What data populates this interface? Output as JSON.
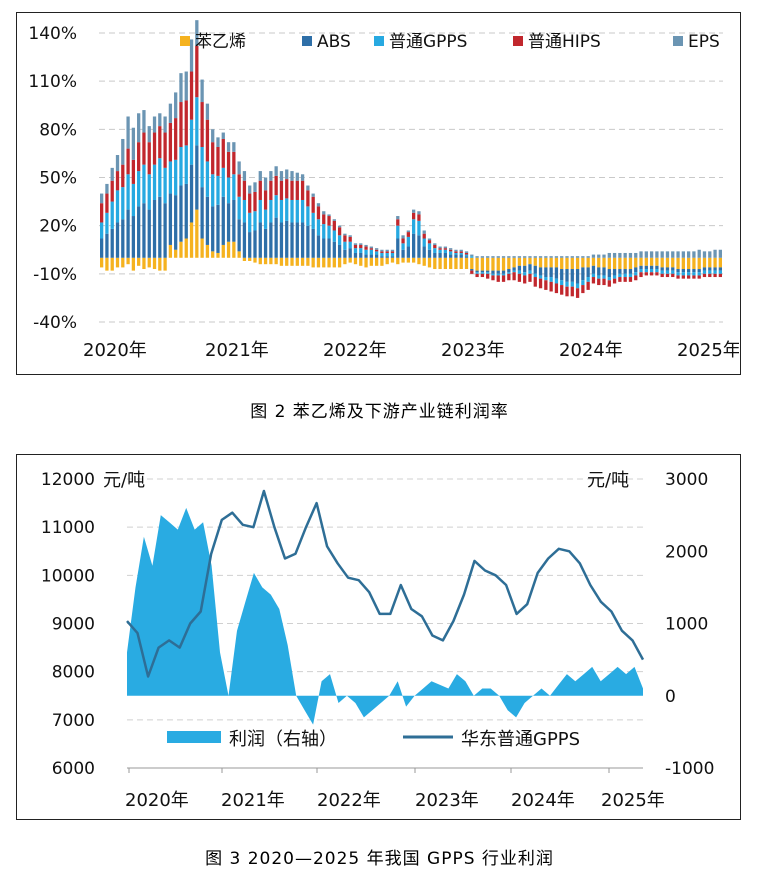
{
  "figure1": {
    "caption": "图 2  苯乙烯及下游产业链利润率",
    "chart_data": {
      "type": "bar",
      "stacked": true,
      "title": "",
      "y_ticks": [
        "140%",
        "110%",
        "80%",
        "50%",
        "20%",
        "-10%",
        "-40%"
      ],
      "ylim": [
        -40,
        140
      ],
      "x_ticks": [
        "2020年",
        "2021年",
        "2022年",
        "2023年",
        "2024年",
        "2025年"
      ],
      "legend_position": "top",
      "grid": "horizontal dashed",
      "series": [
        {
          "name": "苯乙烯",
          "color": "#F5B21F",
          "values": [
            -6,
            -8,
            -8,
            -6,
            -6,
            -4,
            -8,
            -5,
            -7,
            -6,
            -7,
            -8,
            -8,
            8,
            5,
            10,
            12,
            22,
            30,
            12,
            8,
            4,
            3,
            8,
            10,
            10,
            4,
            -2,
            -2,
            -3,
            -4,
            -4,
            -4,
            -4,
            -5,
            -5,
            -5,
            -5,
            -5,
            -5,
            -6,
            -6,
            -6,
            -6,
            -6,
            -6,
            -4,
            -3,
            -4,
            -5,
            -6,
            -5,
            -5,
            -5,
            -4,
            -3,
            -4,
            -3,
            -3,
            -3,
            -4,
            -5,
            -6,
            -7,
            -7,
            -7,
            -7,
            -7,
            -7,
            -7,
            -7,
            -8,
            -8,
            -8,
            -8,
            -8,
            -8,
            -7,
            -6,
            -5,
            -5,
            -4,
            -5,
            -6,
            -6,
            -6,
            -6,
            -7,
            -7,
            -7,
            -7,
            -6,
            -6,
            -5,
            -6,
            -6,
            -7,
            -7,
            -7,
            -7,
            -7,
            -6,
            -5,
            -5,
            -5,
            -5,
            -6,
            -6,
            -6,
            -7,
            -7,
            -7,
            -7,
            -7,
            -6,
            -6,
            -6,
            -6
          ]
        },
        {
          "name": "ABS",
          "color": "#2E6FA8",
          "values": [
            12,
            15,
            18,
            22,
            24,
            30,
            26,
            32,
            34,
            30,
            36,
            38,
            34,
            32,
            34,
            35,
            34,
            36,
            40,
            32,
            30,
            28,
            30,
            30,
            24,
            26,
            20,
            22,
            16,
            17,
            22,
            18,
            22,
            25,
            22,
            23,
            22,
            22,
            22,
            20,
            18,
            14,
            12,
            12,
            10,
            8,
            5,
            6,
            3,
            3,
            2,
            2,
            2,
            1,
            1,
            1,
            12,
            5,
            7,
            15,
            14,
            7,
            5,
            3,
            3,
            3,
            2,
            2,
            2,
            1,
            -1,
            -1,
            -1,
            -1,
            -2,
            -2,
            -2,
            -2,
            -2,
            -3,
            -4,
            -4,
            -5,
            -5,
            -6,
            -6,
            -7,
            -7,
            -8,
            -8,
            -9,
            -8,
            -6,
            -5,
            -5,
            -5,
            -5,
            -4,
            -3,
            -3,
            -3,
            -3,
            -2,
            -2,
            -2,
            -2,
            -2,
            -2,
            -2,
            -2,
            -2,
            -2,
            -2,
            -2,
            -2,
            -2,
            -2,
            -2
          ]
        },
        {
          "name": "普通GPPS",
          "color": "#27A9E1",
          "values": [
            10,
            13,
            17,
            20,
            20,
            22,
            20,
            22,
            24,
            22,
            22,
            24,
            22,
            20,
            22,
            24,
            24,
            28,
            30,
            25,
            22,
            20,
            18,
            18,
            16,
            16,
            14,
            14,
            12,
            12,
            14,
            12,
            14,
            14,
            14,
            14,
            14,
            14,
            14,
            12,
            10,
            10,
            9,
            8,
            7,
            6,
            5,
            4,
            3,
            3,
            3,
            3,
            2,
            2,
            2,
            2,
            8,
            4,
            6,
            9,
            9,
            5,
            4,
            3,
            2,
            2,
            2,
            1,
            1,
            1,
            1,
            -1,
            -1,
            -1,
            -1,
            -1,
            -1,
            -1,
            -1,
            -2,
            -2,
            -2,
            -2,
            -2,
            -2,
            -3,
            -3,
            -3,
            -3,
            -3,
            -3,
            -3,
            -3,
            -2,
            -2,
            -2,
            -2,
            -2,
            -2,
            -2,
            -2,
            -2,
            -2,
            -2,
            -2,
            -2,
            -2,
            -2,
            -2,
            -2,
            -2,
            -2,
            -2,
            -2,
            -2,
            -2,
            -2,
            -2
          ]
        },
        {
          "name": "普通HIPS",
          "color": "#C1272D",
          "values": [
            12,
            12,
            13,
            12,
            14,
            16,
            15,
            18,
            20,
            20,
            20,
            20,
            22,
            24,
            26,
            28,
            28,
            30,
            32,
            28,
            26,
            20,
            18,
            18,
            16,
            14,
            14,
            12,
            12,
            12,
            12,
            12,
            12,
            12,
            12,
            12,
            12,
            12,
            12,
            10,
            10,
            8,
            6,
            6,
            6,
            5,
            4,
            3,
            2,
            2,
            2,
            1,
            1,
            1,
            1,
            1,
            4,
            3,
            3,
            4,
            4,
            3,
            2,
            2,
            1,
            1,
            1,
            1,
            1,
            1,
            -2,
            -2,
            -2,
            -3,
            -3,
            -4,
            -4,
            -4,
            -5,
            -5,
            -5,
            -5,
            -6,
            -6,
            -6,
            -6,
            -6,
            -6,
            -6,
            -6,
            -6,
            -5,
            -5,
            -4,
            -4,
            -4,
            -4,
            -3,
            -3,
            -3,
            -3,
            -3,
            -3,
            -2,
            -2,
            -2,
            -2,
            -2,
            -2,
            -2,
            -2,
            -2,
            -2,
            -2,
            -2,
            -2,
            -2,
            -2
          ]
        },
        {
          "name": "EPS",
          "color": "#6B95B3",
          "values": [
            6,
            6,
            8,
            10,
            16,
            20,
            20,
            18,
            14,
            10,
            10,
            8,
            10,
            12,
            16,
            18,
            18,
            20,
            16,
            14,
            10,
            8,
            6,
            4,
            6,
            6,
            8,
            6,
            5,
            6,
            6,
            8,
            6,
            6,
            6,
            6,
            6,
            5,
            4,
            3,
            2,
            2,
            2,
            1,
            1,
            1,
            1,
            1,
            1,
            1,
            1,
            1,
            1,
            1,
            1,
            1,
            2,
            2,
            1,
            2,
            2,
            2,
            1,
            1,
            1,
            1,
            1,
            1,
            1,
            1,
            1,
            1,
            1,
            1,
            1,
            1,
            1,
            1,
            1,
            1,
            1,
            1,
            1,
            1,
            1,
            1,
            1,
            1,
            1,
            1,
            1,
            1,
            1,
            2,
            2,
            2,
            3,
            3,
            3,
            3,
            3,
            3,
            4,
            4,
            4,
            4,
            4,
            4,
            4,
            4,
            4,
            4,
            4,
            5,
            4,
            4,
            5,
            5
          ]
        }
      ]
    }
  },
  "figure2": {
    "caption": "图 3  2020—2025 年我国 GPPS 行业利润",
    "chart_data": {
      "type": "line",
      "title": "",
      "left_axis": {
        "unit": "元/吨",
        "ticks": [
          "12000",
          "11000",
          "10000",
          "9000",
          "8000",
          "7000",
          "6000"
        ],
        "ylim": [
          6000,
          12000
        ]
      },
      "right_axis": {
        "unit": "元/吨",
        "ticks": [
          "3000",
          "2000",
          "1000",
          "0",
          "-1000"
        ],
        "ylim": [
          -1000,
          3000
        ]
      },
      "x_ticks": [
        "2020年",
        "2021年",
        "2022年",
        "2023年",
        "2024年",
        "2025年"
      ],
      "legend_position": "bottom-inside",
      "series": [
        {
          "name": "利润（右轴）",
          "type": "area",
          "axis": "right",
          "color": "#29ABE2",
          "values": [
            600,
            1500,
            2200,
            1800,
            2500,
            2400,
            2300,
            2600,
            2300,
            2400,
            1800,
            600,
            0,
            900,
            1300,
            1700,
            1500,
            1400,
            1200,
            700,
            0,
            -200,
            -400,
            200,
            300,
            -100,
            0,
            -100,
            -300,
            -200,
            -100,
            0,
            200,
            -150,
            0,
            100,
            200,
            150,
            100,
            300,
            200,
            0,
            100,
            100,
            0,
            -200,
            -300,
            -100,
            0,
            100,
            0,
            150,
            300,
            200,
            300,
            400,
            200,
            300,
            400,
            300,
            400,
            100
          ]
        },
        {
          "name": "华东普通GPPS",
          "type": "line",
          "axis": "left",
          "color": "#2E6E96",
          "values": [
            9050,
            8800,
            7900,
            8500,
            8650,
            8500,
            9000,
            9250,
            10450,
            11150,
            11300,
            11050,
            11000,
            11750,
            11000,
            10350,
            10450,
            11000,
            11500,
            10600,
            10250,
            9950,
            9900,
            9650,
            9200,
            9200,
            9800,
            9300,
            9150,
            8750,
            8650,
            9050,
            9600,
            10300,
            10100,
            10000,
            9800,
            9200,
            9400,
            10050,
            10350,
            10550,
            10500,
            10250,
            9800,
            9450,
            9250,
            8850,
            8650,
            8250
          ]
        }
      ]
    }
  }
}
